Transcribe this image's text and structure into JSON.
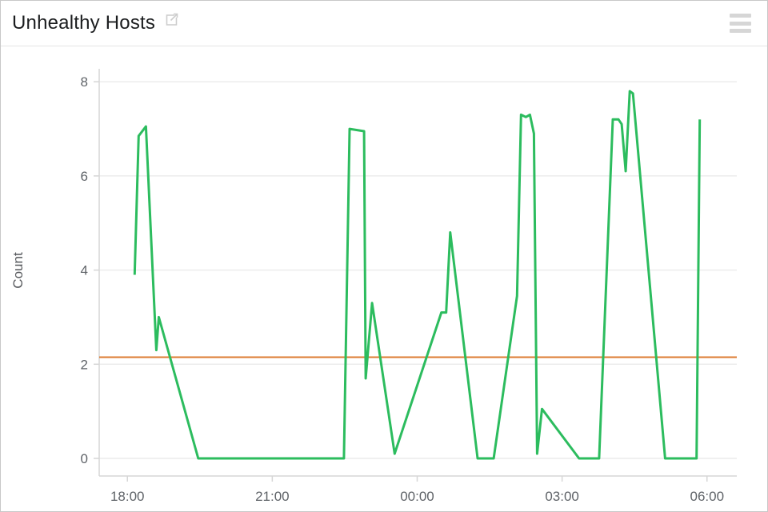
{
  "header": {
    "title": "Unhealthy Hosts"
  },
  "chart_data": {
    "type": "line",
    "title": "Unhealthy Hosts",
    "xlabel": "",
    "ylabel": "Count",
    "ylim": [
      0,
      8.3
    ],
    "yticks": [
      0,
      2,
      4,
      6,
      8
    ],
    "xticks": [
      "18:00",
      "21:00",
      "00:00",
      "03:00",
      "06:00"
    ],
    "x_range": [
      "17:25",
      "06:37"
    ],
    "grid": "horizontal",
    "legend": "none",
    "series": [
      {
        "name": "Unhealthy Hosts",
        "color": "#2cbc5e",
        "points": [
          [
            "18:09",
            3.9
          ],
          [
            "18:14",
            6.85
          ],
          [
            "18:23",
            7.05
          ],
          [
            "18:36",
            2.3
          ],
          [
            "18:39",
            3.0
          ],
          [
            "19:28",
            0
          ],
          [
            "22:29",
            0
          ],
          [
            "22:36",
            7.0
          ],
          [
            "22:54",
            6.95
          ],
          [
            "22:56",
            1.7
          ],
          [
            "23:04",
            3.3
          ],
          [
            "23:32",
            0.1
          ],
          [
            "00:30",
            3.1
          ],
          [
            "00:36",
            3.1
          ],
          [
            "00:41",
            4.8
          ],
          [
            "01:15",
            0
          ],
          [
            "01:35",
            0
          ],
          [
            "02:04",
            3.45
          ],
          [
            "02:09",
            7.3
          ],
          [
            "02:15",
            7.25
          ],
          [
            "02:20",
            7.3
          ],
          [
            "02:25",
            6.9
          ],
          [
            "02:29",
            0.1
          ],
          [
            "02:35",
            1.05
          ],
          [
            "03:21",
            0
          ],
          [
            "03:46",
            0
          ],
          [
            "04:03",
            7.2
          ],
          [
            "04:10",
            7.2
          ],
          [
            "04:14",
            7.1
          ],
          [
            "04:19",
            6.1
          ],
          [
            "04:24",
            7.8
          ],
          [
            "04:28",
            7.75
          ],
          [
            "05:08",
            0
          ],
          [
            "05:47",
            0
          ],
          [
            "05:51",
            7.2
          ]
        ]
      }
    ],
    "threshold": {
      "value": 2.15,
      "color": "#dc7b32"
    }
  },
  "colors": {
    "background": "#ffffff",
    "card_border": "#c8c8c8",
    "header_border": "#e4e4e4",
    "grid": "#ececec",
    "axis": "#d6d6d6",
    "tick_text": "#5f6368",
    "title_text": "#1b1d1f",
    "icon": "#cccccc"
  }
}
